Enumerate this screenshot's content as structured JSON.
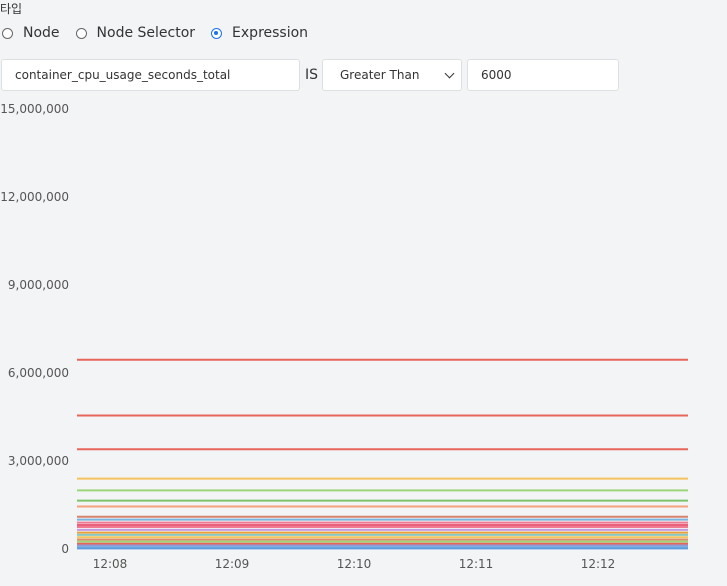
{
  "type_label": "타입",
  "radios": [
    {
      "label": "Node",
      "checked": false
    },
    {
      "label": "Node Selector",
      "checked": false
    },
    {
      "label": "Expression",
      "checked": true
    }
  ],
  "filter": {
    "metric": "container_cpu_usage_seconds_total",
    "is_label": "IS",
    "operator": "Greater Than",
    "value": "6000"
  },
  "chart_data": {
    "type": "line",
    "x": [
      "12:08",
      "12:09",
      "12:10",
      "12:11",
      "12:12"
    ],
    "ylim": [
      0,
      15000000
    ],
    "yticks": [
      0,
      3000000,
      6000000,
      9000000,
      12000000,
      15000000
    ],
    "ytick_labels": [
      "0",
      "3,000,000",
      "6,000,000",
      "9,000,000",
      "12,000,000",
      "15,000,000"
    ],
    "series": [
      {
        "value": 6450000,
        "color": "#e8655a"
      },
      {
        "value": 4550000,
        "color": "#e8655a"
      },
      {
        "value": 3400000,
        "color": "#e8655a"
      },
      {
        "value": 2400000,
        "color": "#f5c25c"
      },
      {
        "value": 2000000,
        "color": "#9cd67a"
      },
      {
        "value": 1650000,
        "color": "#7cc36a"
      },
      {
        "value": 1450000,
        "color": "#f3a27a"
      },
      {
        "value": 1100000,
        "color": "#d9826b"
      },
      {
        "value": 1000000,
        "color": "#7bb4e0"
      },
      {
        "value": 900000,
        "color": "#f07a90"
      },
      {
        "value": 820000,
        "color": "#ea5f7c"
      },
      {
        "value": 750000,
        "color": "#f07a90"
      },
      {
        "value": 650000,
        "color": "#c39be0"
      },
      {
        "value": 560000,
        "color": "#e9a23b"
      },
      {
        "value": 480000,
        "color": "#8bc9c0"
      },
      {
        "value": 400000,
        "color": "#f5c25c"
      },
      {
        "value": 320000,
        "color": "#d98f6b"
      },
      {
        "value": 250000,
        "color": "#a3d47a"
      },
      {
        "value": 180000,
        "color": "#e8655a"
      },
      {
        "value": 120000,
        "color": "#8f9ad6"
      },
      {
        "value": 60000,
        "color": "#7bb4e0"
      },
      {
        "value": 20000,
        "color": "#5c9be0"
      }
    ]
  }
}
